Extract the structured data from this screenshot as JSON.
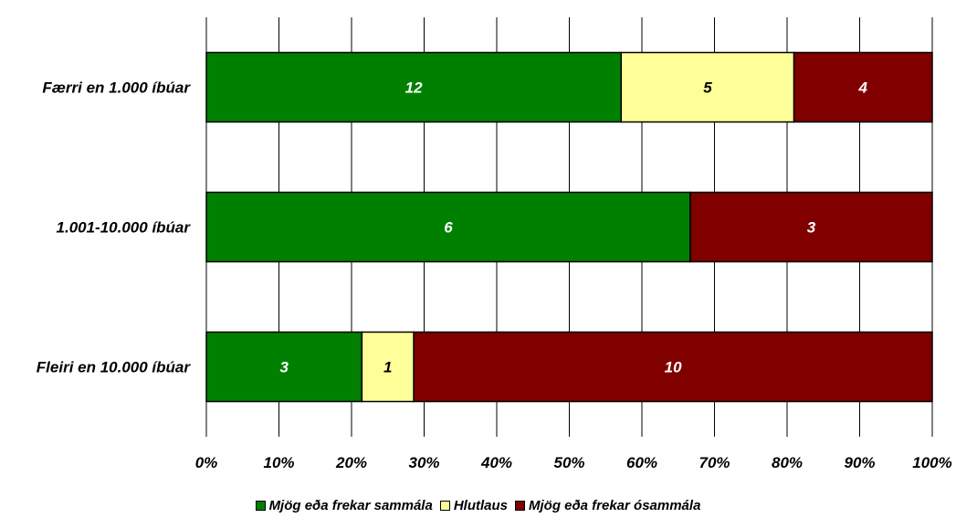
{
  "chart_data": {
    "type": "bar",
    "orientation": "horizontal",
    "stacked": "percent",
    "categories": [
      "Færri en 1.000 íbúar",
      "1.001-10.000 íbúar",
      "Fleiri en 10.000 íbúar"
    ],
    "series": [
      {
        "name": "Mjög eða frekar sammála",
        "color": "#008000",
        "label_color": "#ffffff",
        "values": [
          12,
          6,
          3
        ]
      },
      {
        "name": "Hlutlaus",
        "color": "#ffff99",
        "label_color": "#000000",
        "values": [
          5,
          0,
          1
        ]
      },
      {
        "name": "Mjög eða frekar ósammála",
        "color": "#800000",
        "label_color": "#ffffff",
        "values": [
          4,
          3,
          10
        ]
      }
    ],
    "xticks": [
      "0%",
      "10%",
      "20%",
      "30%",
      "40%",
      "50%",
      "60%",
      "70%",
      "80%",
      "90%",
      "100%"
    ],
    "xlim": [
      0,
      100
    ],
    "grid": true,
    "legend_position": "bottom",
    "title": "",
    "xlabel": "",
    "ylabel": ""
  }
}
